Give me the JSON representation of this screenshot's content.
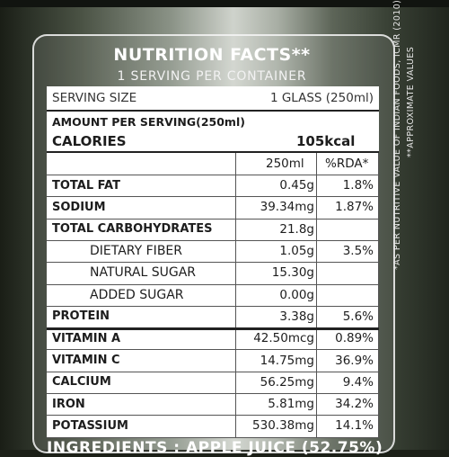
{
  "panel": {
    "title": "NUTRITION FACTS**",
    "subtitle": "1 SERVING PER CONTAINER"
  },
  "serving": {
    "label": "SERVING SIZE",
    "value": "1 GLASS (250ml)"
  },
  "amount_per_serving": "AMOUNT PER SERVING(250ml)",
  "calories": {
    "label": "CALORIES",
    "value": "105kcal"
  },
  "columns": {
    "amount": "250ml",
    "rda": "%RDA*"
  },
  "nutrients": [
    {
      "name": "TOTAL FAT",
      "amount": "0.45g",
      "rda": "1.8%"
    },
    {
      "name": "SODIUM",
      "amount": "39.34mg",
      "rda": "1.87%"
    },
    {
      "name": "TOTAL CARBOHYDRATES",
      "amount": "21.8g",
      "rda": ""
    },
    {
      "name": "DIETARY FIBER",
      "amount": "1.05g",
      "rda": "3.5%"
    },
    {
      "name": "NATURAL SUGAR",
      "amount": "15.30g",
      "rda": ""
    },
    {
      "name": "ADDED SUGAR",
      "amount": "0.00g",
      "rda": ""
    },
    {
      "name": "PROTEIN",
      "amount": "3.38g",
      "rda": "5.6%"
    },
    {
      "name": "VITAMIN A",
      "amount": "42.50mcg",
      "rda": "0.89%"
    },
    {
      "name": "VITAMIN C",
      "amount": "14.75mg",
      "rda": "36.9%"
    },
    {
      "name": "CALCIUM",
      "amount": "56.25mg",
      "rda": "9.4%"
    },
    {
      "name": "IRON",
      "amount": "5.81mg",
      "rda": "34.2%"
    },
    {
      "name": "POTASSIUM",
      "amount": "530.38mg",
      "rda": "14.1%"
    }
  ],
  "side_notes": [
    "**APPROXIMATE VALUES",
    "*AS PER NUTRITIVE VALUE OF INDIAN FOODS, ICMR (2010)"
  ],
  "ingredients_partial": "INGREDIENTS : APPLE JUICE (52.75%)"
}
